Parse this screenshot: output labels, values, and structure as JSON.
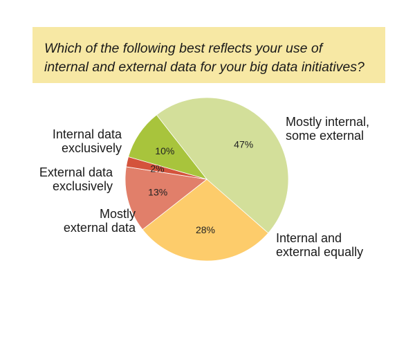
{
  "question": "Which of the following best reflects your use of internal and external data for your big data initiatives?",
  "question_lines": [
    "Which of the following best reflects your use of",
    "internal and external data for your big data initiatives?"
  ],
  "chart_data": {
    "type": "pie",
    "title": "Which of the following best reflects your use of internal and external data for your big data initiatives?",
    "unit": "%",
    "slices": [
      {
        "label": "Mostly internal, some external",
        "label_lines": [
          "Mostly internal,",
          "some external"
        ],
        "value": 47,
        "value_label": "47%",
        "color": "#d3df9a"
      },
      {
        "label": "Internal and external equally",
        "label_lines": [
          "Internal and",
          "external equally"
        ],
        "value": 28,
        "value_label": "28%",
        "color": "#fdcc6b"
      },
      {
        "label": "Mostly external data",
        "label_lines": [
          "Mostly",
          "external data"
        ],
        "value": 13,
        "value_label": "13%",
        "color": "#e17f6a"
      },
      {
        "label": "External data exclusively",
        "label_lines": [
          "External data",
          "exclusively"
        ],
        "value": 2,
        "value_label": "2%",
        "color": "#d4533c"
      },
      {
        "label": "Internal data exclusively",
        "label_lines": [
          "Internal data",
          "exclusively"
        ],
        "value": 10,
        "value_label": "10%",
        "color": "#a8c43c"
      }
    ]
  }
}
